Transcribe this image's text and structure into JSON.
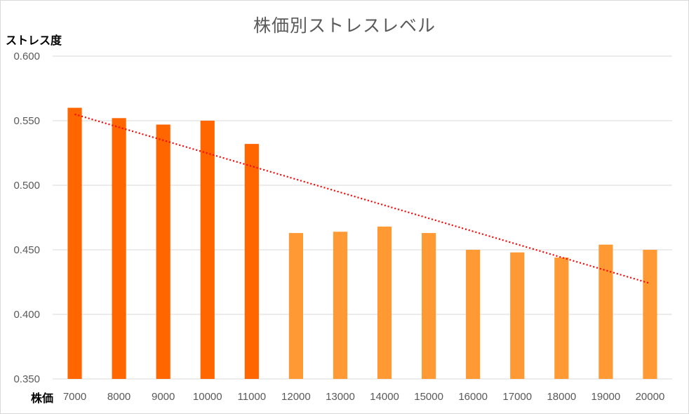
{
  "chart_data": {
    "type": "bar",
    "title": "株価別ストレスレベル",
    "ylabel": "ストレス度",
    "xlabel": "株価",
    "categories": [
      "7000",
      "8000",
      "9000",
      "10000",
      "11000",
      "12000",
      "13000",
      "14000",
      "15000",
      "16000",
      "17000",
      "18000",
      "19000",
      "20000"
    ],
    "values": [
      0.56,
      0.552,
      0.547,
      0.55,
      0.532,
      0.463,
      0.464,
      0.468,
      0.463,
      0.45,
      0.448,
      0.444,
      0.454,
      0.45
    ],
    "bar_colors": [
      "#ff6600",
      "#ff6600",
      "#ff6600",
      "#ff6600",
      "#ff6600",
      "#ff9933",
      "#ff9933",
      "#ff9933",
      "#ff9933",
      "#ff9933",
      "#ff9933",
      "#ff9933",
      "#ff9933",
      "#ff9933"
    ],
    "ylim": [
      0.35,
      0.6
    ],
    "yticks": [
      "0.350",
      "0.400",
      "0.450",
      "0.500",
      "0.550",
      "0.600"
    ],
    "trendline": {
      "type": "linear",
      "style": "dotted",
      "color": "#ff0000",
      "start": 0.555,
      "end": 0.424
    },
    "grid": true,
    "legend": "none"
  }
}
